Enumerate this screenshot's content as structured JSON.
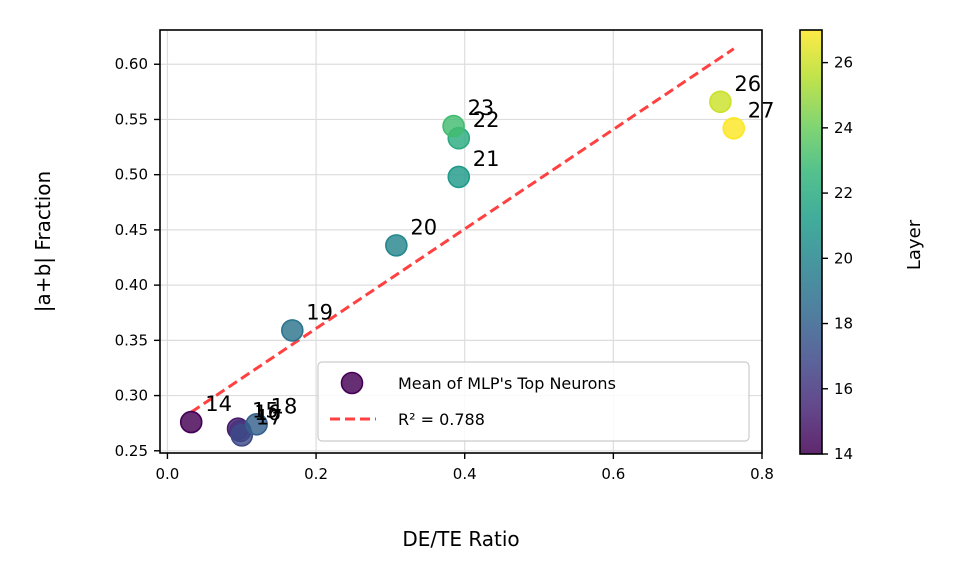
{
  "chart_data": {
    "type": "scatter",
    "title": "",
    "xlabel": "DE/TE Ratio",
    "ylabel": "|a+b| Fraction",
    "xlim": [
      -0.01,
      0.8
    ],
    "ylim": [
      0.248,
      0.631
    ],
    "xticks": [
      0.0,
      0.2,
      0.4,
      0.6,
      0.8
    ],
    "xtick_labels": [
      "0.0",
      "0.2",
      "0.4",
      "0.6",
      "0.8"
    ],
    "yticks": [
      0.25,
      0.3,
      0.35,
      0.4,
      0.45,
      0.5,
      0.55,
      0.6
    ],
    "ytick_labels": [
      "0.25",
      "0.30",
      "0.35",
      "0.40",
      "0.45",
      "0.50",
      "0.55",
      "0.60"
    ],
    "grid": true,
    "legend_position": "lower-right",
    "series": [
      {
        "name": "Mean of MLP's Top Neurons",
        "kind": "scatter",
        "points": [
          {
            "layer": 14,
            "label": "14",
            "x": 0.032,
            "y": 0.276
          },
          {
            "layer": 15,
            "label": "15",
            "x": 0.095,
            "y": 0.27
          },
          {
            "layer": 16,
            "label": "16",
            "x": 0.098,
            "y": 0.268
          },
          {
            "layer": 17,
            "label": "17",
            "x": 0.1,
            "y": 0.264
          },
          {
            "layer": 18,
            "label": "18",
            "x": 0.12,
            "y": 0.274
          },
          {
            "layer": 19,
            "label": "19",
            "x": 0.168,
            "y": 0.359
          },
          {
            "layer": 20,
            "label": "20",
            "x": 0.308,
            "y": 0.436
          },
          {
            "layer": 21,
            "label": "21",
            "x": 0.392,
            "y": 0.498
          },
          {
            "layer": 22,
            "label": "22",
            "x": 0.392,
            "y": 0.533
          },
          {
            "layer": 23,
            "label": "23",
            "x": 0.385,
            "y": 0.544
          },
          {
            "layer": 26,
            "label": "26",
            "x": 0.744,
            "y": 0.566
          },
          {
            "layer": 27,
            "label": "27",
            "x": 0.762,
            "y": 0.542
          }
        ]
      },
      {
        "name": "R² = 0.788",
        "kind": "fit-line",
        "x": [
          0.032,
          0.762
        ],
        "y": [
          0.285,
          0.614
        ],
        "color": "#ff2020"
      }
    ],
    "colorbar": {
      "label": "Layer",
      "min": 14,
      "max": 27,
      "ticks": [
        14,
        16,
        18,
        20,
        22,
        24,
        26
      ],
      "tick_labels": [
        "14",
        "16",
        "18",
        "20",
        "22",
        "24",
        "26"
      ],
      "colormap": "viridis",
      "colormap_stops": [
        "#440154",
        "#482878",
        "#3e4989",
        "#31688e",
        "#26828e",
        "#1f9e89",
        "#35b779",
        "#6ece58",
        "#b5de2b",
        "#fde725"
      ]
    }
  }
}
